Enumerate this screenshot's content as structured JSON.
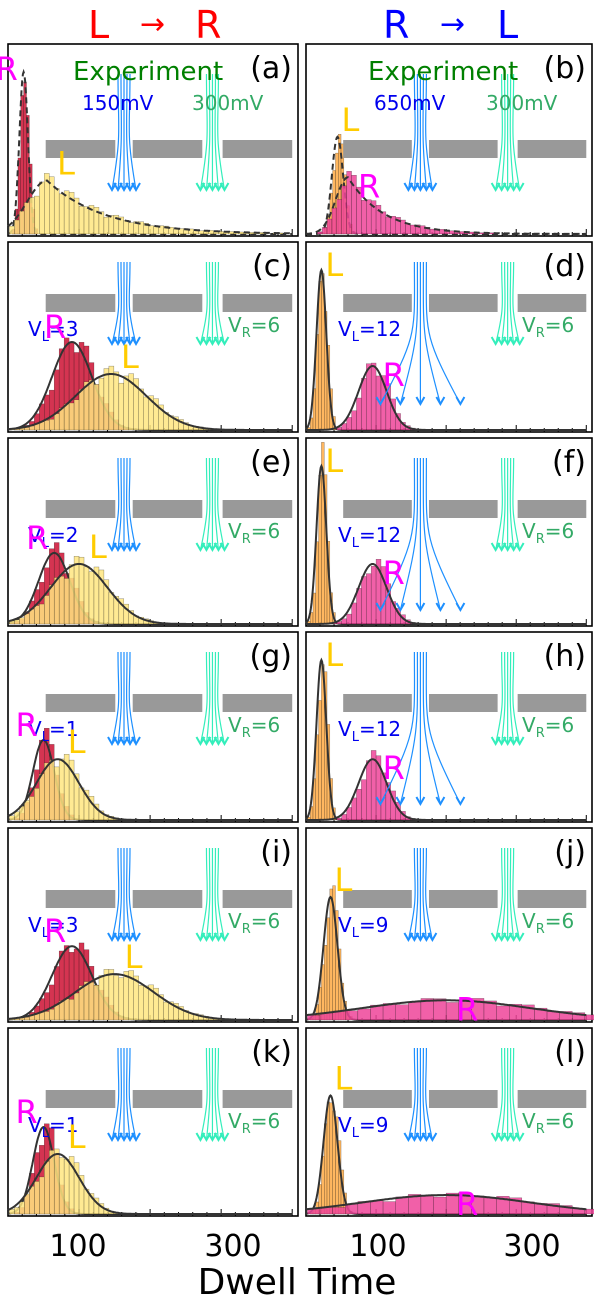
{
  "figure": {
    "col_titles": [
      {
        "from": "L",
        "arrow": "→",
        "to": "R",
        "color": "#ff0000"
      },
      {
        "from": "R",
        "arrow": "→",
        "to": "L",
        "color": "#0000ff"
      }
    ],
    "xlabel": "Dwell Time",
    "xticks": [
      "100",
      "300"
    ]
  },
  "colors": {
    "R_label": "#ff00ff",
    "L_label": "#ffcc00",
    "experiment": "#008000",
    "blue_arrows": "#1e90ff",
    "green_arrows": "#33eebb",
    "red_bars_LR": "#cc1133",
    "yellow_bars_LR": "#ffe680",
    "orange_bars_RL": "#ffaa44",
    "pink_bars_RL": "#ee4499",
    "membrane": "#999999",
    "fit_curve": "#333333"
  },
  "chart_data": [
    {
      "panel": "(a)",
      "type": "histogram",
      "annot": {
        "title": "Experiment",
        "left_v": "150mV",
        "right_v": "300mV"
      },
      "labels": {
        "R": "R",
        "L": "L"
      },
      "series": [
        {
          "name": "R",
          "mean": 22,
          "sd": 6,
          "height": 1.0,
          "color": "#cc1133"
        },
        {
          "name": "L",
          "mean": 55,
          "sd": 80,
          "height": 0.33,
          "color": "#ffe680",
          "tail": true
        }
      ]
    },
    {
      "panel": "(b)",
      "type": "histogram",
      "annot": {
        "title": "Experiment",
        "left_v": "650mV",
        "right_v": "300mV"
      },
      "labels": {
        "R": "R",
        "L": "L"
      },
      "series": [
        {
          "name": "L",
          "mean": 45,
          "sd": 8,
          "height": 0.6,
          "color": "#ffaa44"
        },
        {
          "name": "R",
          "mean": 60,
          "sd": 50,
          "height": 0.35,
          "color": "#ee4499",
          "tail": true
        }
      ]
    },
    {
      "panel": "(c)",
      "type": "histogram",
      "annot": {
        "left_v": "V",
        "left_sub": "L",
        "left_n": "=3",
        "right_v": "V",
        "right_sub": "R",
        "right_n": "=6"
      },
      "labels": {
        "R": "R",
        "L": "L"
      },
      "series": [
        {
          "name": "R",
          "mean": 90,
          "sd": 28,
          "height": 0.55,
          "color": "#cc1133"
        },
        {
          "name": "L",
          "mean": 145,
          "sd": 50,
          "height": 0.35,
          "color": "#ffe680"
        }
      ]
    },
    {
      "panel": "(d)",
      "type": "histogram",
      "annot": {
        "left_v": "V",
        "left_sub": "L",
        "left_n": "=12",
        "right_v": "V",
        "right_sub": "R",
        "right_n": "=6"
      },
      "labels": {
        "R": "R",
        "L": "L"
      },
      "series": [
        {
          "name": "L",
          "mean": 22,
          "sd": 7,
          "height": 1.0,
          "color": "#ffaa44"
        },
        {
          "name": "R",
          "mean": 95,
          "sd": 20,
          "height": 0.4,
          "color": "#ee4499"
        }
      ]
    },
    {
      "panel": "(e)",
      "type": "histogram",
      "annot": {
        "left_v": "V",
        "left_sub": "L",
        "left_n": "=2",
        "right_v": "V",
        "right_sub": "R",
        "right_n": "=6"
      },
      "labels": {
        "R": "R",
        "L": "L"
      },
      "series": [
        {
          "name": "R",
          "mean": 65,
          "sd": 22,
          "height": 0.45,
          "color": "#cc1133"
        },
        {
          "name": "L",
          "mean": 100,
          "sd": 40,
          "height": 0.38,
          "color": "#ffe680"
        }
      ]
    },
    {
      "panel": "(f)",
      "type": "histogram",
      "annot": {
        "left_v": "V",
        "left_sub": "L",
        "left_n": "=12",
        "right_v": "V",
        "right_sub": "R",
        "right_n": "=6"
      },
      "labels": {
        "R": "R",
        "L": "L"
      },
      "series": [
        {
          "name": "L",
          "mean": 22,
          "sd": 7,
          "height": 1.0,
          "color": "#ffaa44"
        },
        {
          "name": "R",
          "mean": 95,
          "sd": 20,
          "height": 0.38,
          "color": "#ee4499"
        }
      ]
    },
    {
      "panel": "(g)",
      "type": "histogram",
      "annot": {
        "left_v": "V",
        "left_sub": "L",
        "left_n": "=1",
        "right_v": "V",
        "right_sub": "R",
        "right_n": "=6"
      },
      "labels": {
        "R": "R",
        "L": "L"
      },
      "series": [
        {
          "name": "R",
          "mean": 50,
          "sd": 15,
          "height": 0.5,
          "color": "#cc1133"
        },
        {
          "name": "L",
          "mean": 70,
          "sd": 30,
          "height": 0.38,
          "color": "#ffe680"
        }
      ]
    },
    {
      "panel": "(h)",
      "type": "histogram",
      "annot": {
        "left_v": "V",
        "left_sub": "L",
        "left_n": "=12",
        "right_v": "V",
        "right_sub": "R",
        "right_n": "=6"
      },
      "labels": {
        "R": "R",
        "L": "L"
      },
      "series": [
        {
          "name": "L",
          "mean": 22,
          "sd": 7,
          "height": 1.0,
          "color": "#ffaa44"
        },
        {
          "name": "R",
          "mean": 95,
          "sd": 20,
          "height": 0.38,
          "color": "#ee4499"
        }
      ]
    },
    {
      "panel": "(i)",
      "type": "histogram",
      "annot": {
        "left_v": "V",
        "left_sub": "L",
        "left_n": "=3",
        "right_v": "V",
        "right_sub": "R",
        "right_n": "=6"
      },
      "labels": {
        "R": "R",
        "L": "L"
      },
      "series": [
        {
          "name": "R",
          "mean": 90,
          "sd": 28,
          "height": 0.45,
          "color": "#cc1133"
        },
        {
          "name": "L",
          "mean": 150,
          "sd": 55,
          "height": 0.28,
          "color": "#ffe680"
        }
      ]
    },
    {
      "panel": "(j)",
      "type": "histogram",
      "annot": {
        "left_v": "V",
        "left_sub": "L",
        "left_n": "=9",
        "right_v": "V",
        "right_sub": "R",
        "right_n": "=6"
      },
      "labels": {
        "R": "R",
        "L": "L"
      },
      "series": [
        {
          "name": "L",
          "mean": 35,
          "sd": 10,
          "height": 0.75,
          "color": "#ffaa44"
        },
        {
          "name": "R",
          "mean": 200,
          "sd": 120,
          "height": 0.12,
          "color": "#ee4499"
        }
      ]
    },
    {
      "panel": "(k)",
      "type": "histogram",
      "annot": {
        "left_v": "V",
        "left_sub": "L",
        "left_n": "=1",
        "right_v": "V",
        "right_sub": "R",
        "right_n": "=6"
      },
      "labels": {
        "R": "R",
        "L": "L"
      },
      "series": [
        {
          "name": "R",
          "mean": 50,
          "sd": 15,
          "height": 0.55,
          "color": "#cc1133"
        },
        {
          "name": "L",
          "mean": 70,
          "sd": 30,
          "height": 0.38,
          "color": "#ffe680"
        }
      ]
    },
    {
      "panel": "(l)",
      "type": "histogram",
      "annot": {
        "left_v": "V",
        "left_sub": "L",
        "left_n": "=9",
        "right_v": "V",
        "right_sub": "R",
        "right_n": "=6"
      },
      "labels": {
        "R": "R",
        "L": "L"
      },
      "series": [
        {
          "name": "L",
          "mean": 35,
          "sd": 10,
          "height": 0.75,
          "color": "#ffaa44"
        },
        {
          "name": "R",
          "mean": 200,
          "sd": 120,
          "height": 0.12,
          "color": "#ee4499"
        }
      ]
    }
  ]
}
